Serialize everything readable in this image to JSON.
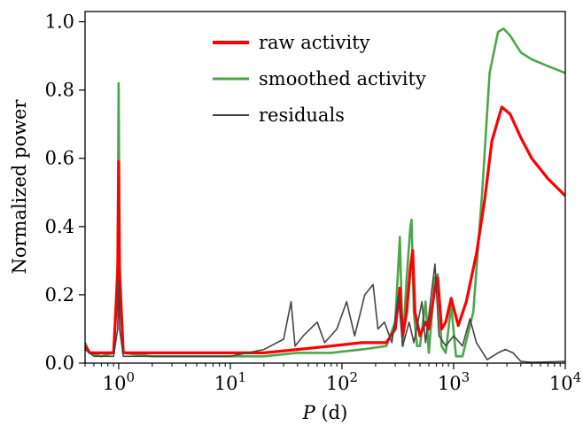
{
  "chart_data": {
    "type": "line",
    "title": "",
    "xlabel_var": "P",
    "xlabel_unit": " (d)",
    "ylabel": "Normalized power",
    "xscale": "log",
    "xlim": [
      0.5,
      10000
    ],
    "ylim": [
      0,
      1.03
    ],
    "x_ticks": [
      {
        "value": 1,
        "base": "10",
        "exp": "0"
      },
      {
        "value": 10,
        "base": "10",
        "exp": "1"
      },
      {
        "value": 100,
        "base": "10",
        "exp": "2"
      },
      {
        "value": 1000,
        "base": "10",
        "exp": "3"
      },
      {
        "value": 10000,
        "base": "10",
        "exp": "4"
      }
    ],
    "y_ticks": [
      {
        "value": 0.0,
        "label": "0.0"
      },
      {
        "value": 0.2,
        "label": "0.2"
      },
      {
        "value": 0.4,
        "label": "0.4"
      },
      {
        "value": 0.6,
        "label": "0.6"
      },
      {
        "value": 0.8,
        "label": "0.8"
      },
      {
        "value": 1.0,
        "label": "1.0"
      }
    ],
    "legend_position": "top-center",
    "grid": false,
    "series": [
      {
        "name": "smoothed activity",
        "color": "#4ca64c",
        "points": [
          [
            0.5,
            0.06
          ],
          [
            0.55,
            0.03
          ],
          [
            0.7,
            0.02
          ],
          [
            0.9,
            0.03
          ],
          [
            0.98,
            0.3
          ],
          [
            1.0,
            0.82
          ],
          [
            1.02,
            0.3
          ],
          [
            1.1,
            0.03
          ],
          [
            2,
            0.02
          ],
          [
            5,
            0.02
          ],
          [
            10,
            0.02
          ],
          [
            20,
            0.02
          ],
          [
            40,
            0.03
          ],
          [
            80,
            0.03
          ],
          [
            150,
            0.04
          ],
          [
            250,
            0.05
          ],
          [
            300,
            0.12
          ],
          [
            330,
            0.37
          ],
          [
            350,
            0.05
          ],
          [
            380,
            0.25
          ],
          [
            410,
            0.4
          ],
          [
            420,
            0.42
          ],
          [
            440,
            0.15
          ],
          [
            470,
            0.05
          ],
          [
            500,
            0.05
          ],
          [
            560,
            0.18
          ],
          [
            600,
            0.03
          ],
          [
            680,
            0.25
          ],
          [
            720,
            0.26
          ],
          [
            780,
            0.05
          ],
          [
            850,
            0.03
          ],
          [
            950,
            0.17
          ],
          [
            1050,
            0.02
          ],
          [
            1200,
            0.02
          ],
          [
            1500,
            0.15
          ],
          [
            1800,
            0.5
          ],
          [
            2100,
            0.85
          ],
          [
            2500,
            0.97
          ],
          [
            2800,
            0.98
          ],
          [
            3200,
            0.96
          ],
          [
            4000,
            0.91
          ],
          [
            5000,
            0.89
          ],
          [
            7000,
            0.87
          ],
          [
            10000,
            0.85
          ]
        ]
      },
      {
        "name": "raw activity",
        "color": "#ff0000",
        "points": [
          [
            0.5,
            0.05
          ],
          [
            0.55,
            0.03
          ],
          [
            0.7,
            0.03
          ],
          [
            0.9,
            0.03
          ],
          [
            0.98,
            0.25
          ],
          [
            1.0,
            0.59
          ],
          [
            1.02,
            0.25
          ],
          [
            1.1,
            0.03
          ],
          [
            2,
            0.03
          ],
          [
            5,
            0.03
          ],
          [
            10,
            0.03
          ],
          [
            20,
            0.03
          ],
          [
            40,
            0.04
          ],
          [
            80,
            0.05
          ],
          [
            150,
            0.06
          ],
          [
            250,
            0.06
          ],
          [
            300,
            0.1
          ],
          [
            330,
            0.22
          ],
          [
            350,
            0.08
          ],
          [
            380,
            0.15
          ],
          [
            410,
            0.28
          ],
          [
            430,
            0.33
          ],
          [
            450,
            0.15
          ],
          [
            500,
            0.08
          ],
          [
            560,
            0.12
          ],
          [
            600,
            0.1
          ],
          [
            680,
            0.22
          ],
          [
            720,
            0.25
          ],
          [
            780,
            0.1
          ],
          [
            850,
            0.12
          ],
          [
            950,
            0.19
          ],
          [
            1100,
            0.11
          ],
          [
            1300,
            0.18
          ],
          [
            1600,
            0.32
          ],
          [
            1900,
            0.48
          ],
          [
            2200,
            0.65
          ],
          [
            2700,
            0.75
          ],
          [
            3200,
            0.73
          ],
          [
            4000,
            0.66
          ],
          [
            5000,
            0.6
          ],
          [
            7000,
            0.54
          ],
          [
            10000,
            0.49
          ]
        ]
      },
      {
        "name": "residuals",
        "color": "#444444",
        "points": [
          [
            0.5,
            0.04
          ],
          [
            0.6,
            0.02
          ],
          [
            0.9,
            0.02
          ],
          [
            0.98,
            0.1
          ],
          [
            1.0,
            0.24
          ],
          [
            1.02,
            0.1
          ],
          [
            1.1,
            0.02
          ],
          [
            3,
            0.02
          ],
          [
            10,
            0.02
          ],
          [
            20,
            0.04
          ],
          [
            30,
            0.07
          ],
          [
            35,
            0.18
          ],
          [
            38,
            0.05
          ],
          [
            45,
            0.08
          ],
          [
            60,
            0.12
          ],
          [
            70,
            0.06
          ],
          [
            90,
            0.1
          ],
          [
            110,
            0.18
          ],
          [
            130,
            0.08
          ],
          [
            160,
            0.2
          ],
          [
            190,
            0.23
          ],
          [
            210,
            0.1
          ],
          [
            240,
            0.12
          ],
          [
            280,
            0.06
          ],
          [
            320,
            0.2
          ],
          [
            350,
            0.05
          ],
          [
            400,
            0.12
          ],
          [
            440,
            0.06
          ],
          [
            520,
            0.18
          ],
          [
            560,
            0.06
          ],
          [
            680,
            0.29
          ],
          [
            740,
            0.08
          ],
          [
            850,
            0.05
          ],
          [
            1000,
            0.08
          ],
          [
            1200,
            0.05
          ],
          [
            1400,
            0.13
          ],
          [
            1600,
            0.06
          ],
          [
            2000,
            0.01
          ],
          [
            2500,
            0.03
          ],
          [
            2900,
            0.04
          ],
          [
            3400,
            0.03
          ],
          [
            4000,
            0.005
          ],
          [
            5000,
            0.002
          ],
          [
            10000,
            0.005
          ]
        ]
      }
    ]
  }
}
